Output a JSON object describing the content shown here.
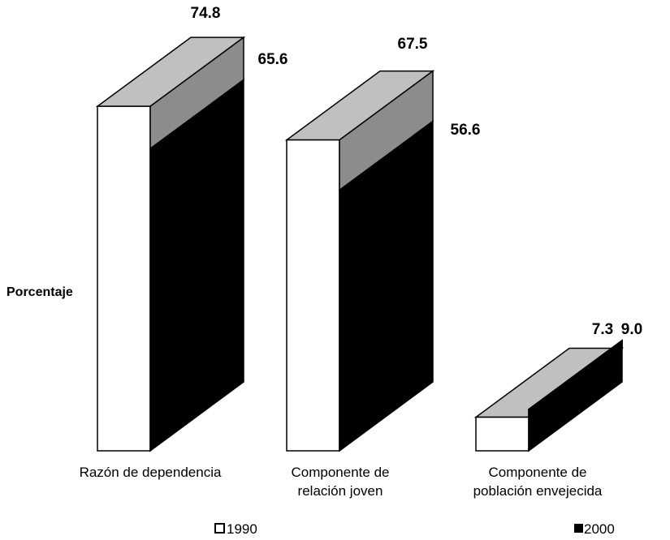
{
  "chart_data": {
    "type": "bar",
    "ylabel": "Porcentaje",
    "categories": [
      [
        "Razón de dependencia"
      ],
      [
        "Componente de",
        "relación joven"
      ],
      [
        "Componente de",
        "población envejecida"
      ]
    ],
    "series": [
      {
        "name": "1990",
        "values": [
          74.8,
          67.5,
          7.3
        ],
        "color": "#ffffff",
        "top_color": "#c0c0c0",
        "side_color": "#000000"
      },
      {
        "name": "2000",
        "values": [
          65.6,
          56.6,
          9.0
        ],
        "color": "#000000",
        "top_color": "#c0c0c0",
        "side_color": "#000000"
      }
    ],
    "value_labels": [
      [
        "74.8",
        "67.5",
        "7.3"
      ],
      [
        "65.6",
        "56.6",
        "9.0"
      ]
    ],
    "legend": {
      "items": [
        {
          "label": "1990",
          "color": "#ffffff"
        },
        {
          "label": "2000",
          "color": "#000000"
        }
      ],
      "placement": "bottom"
    },
    "style": "3d",
    "grid": false
  }
}
